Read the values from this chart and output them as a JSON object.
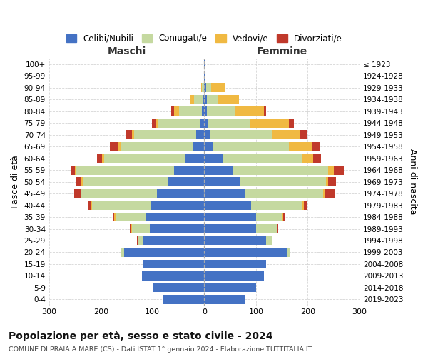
{
  "age_groups": [
    "0-4",
    "5-9",
    "10-14",
    "15-19",
    "20-24",
    "25-29",
    "30-34",
    "35-39",
    "40-44",
    "45-49",
    "50-54",
    "55-59",
    "60-64",
    "65-69",
    "70-74",
    "75-79",
    "80-84",
    "85-89",
    "90-94",
    "95-99",
    "100+"
  ],
  "birth_years": [
    "2019-2023",
    "2014-2018",
    "2009-2013",
    "2004-2008",
    "1999-2003",
    "1994-1998",
    "1989-1993",
    "1984-1988",
    "1979-1983",
    "1974-1978",
    "1969-1973",
    "1964-1968",
    "1959-1963",
    "1954-1958",
    "1949-1953",
    "1944-1948",
    "1939-1943",
    "1934-1938",
    "1929-1933",
    "1924-1928",
    "≤ 1923"
  ],
  "colors": {
    "celibi": "#4472c4",
    "coniugati": "#c5d9a0",
    "vedovi": "#f0b942",
    "divorziati": "#c0392b"
  },
  "maschi": {
    "celibi": [
      80,
      100,
      120,
      118,
      155,
      118,
      105,
      112,
      102,
      92,
      70,
      58,
      38,
      22,
      15,
      8,
      4,
      2,
      1,
      0,
      0
    ],
    "coniugati": [
      0,
      0,
      0,
      0,
      5,
      10,
      35,
      60,
      115,
      145,
      165,
      190,
      155,
      140,
      120,
      80,
      45,
      18,
      3,
      0,
      0
    ],
    "vedovi": [
      0,
      0,
      0,
      0,
      1,
      1,
      2,
      2,
      2,
      2,
      2,
      2,
      4,
      5,
      5,
      5,
      10,
      8,
      2,
      0,
      0
    ],
    "divorziati": [
      0,
      0,
      0,
      0,
      1,
      1,
      2,
      3,
      5,
      12,
      10,
      8,
      10,
      15,
      12,
      8,
      5,
      0,
      0,
      0,
      0
    ]
  },
  "femmine": {
    "celibi": [
      80,
      100,
      115,
      120,
      160,
      120,
      100,
      100,
      90,
      80,
      70,
      55,
      35,
      18,
      10,
      8,
      5,
      5,
      4,
      1,
      1
    ],
    "coniugati": [
      0,
      0,
      0,
      0,
      5,
      10,
      40,
      50,
      100,
      150,
      165,
      185,
      155,
      145,
      120,
      80,
      55,
      22,
      10,
      0,
      0
    ],
    "vedovi": [
      0,
      0,
      0,
      0,
      1,
      1,
      1,
      2,
      3,
      3,
      5,
      10,
      20,
      45,
      55,
      75,
      55,
      40,
      25,
      1,
      1
    ],
    "divorziati": [
      0,
      0,
      0,
      0,
      1,
      1,
      2,
      3,
      5,
      20,
      15,
      20,
      15,
      15,
      15,
      10,
      5,
      0,
      0,
      0,
      0
    ]
  },
  "xlim": 300,
  "title": "Popolazione per età, sesso e stato civile - 2024",
  "subtitle": "COMUNE DI PRAIA A MARE (CS) - Dati ISTAT 1° gennaio 2024 - Elaborazione TUTTITALIA.IT",
  "ylabel_left": "Fasce di età",
  "ylabel_right": "Anni di nascita",
  "maschi_label": "Maschi",
  "femmine_label": "Femmine",
  "legend_labels": [
    "Celibi/Nubili",
    "Coniugati/e",
    "Vedovi/e",
    "Divorziati/e"
  ],
  "background_color": "#ffffff",
  "grid_color": "#cccccc"
}
